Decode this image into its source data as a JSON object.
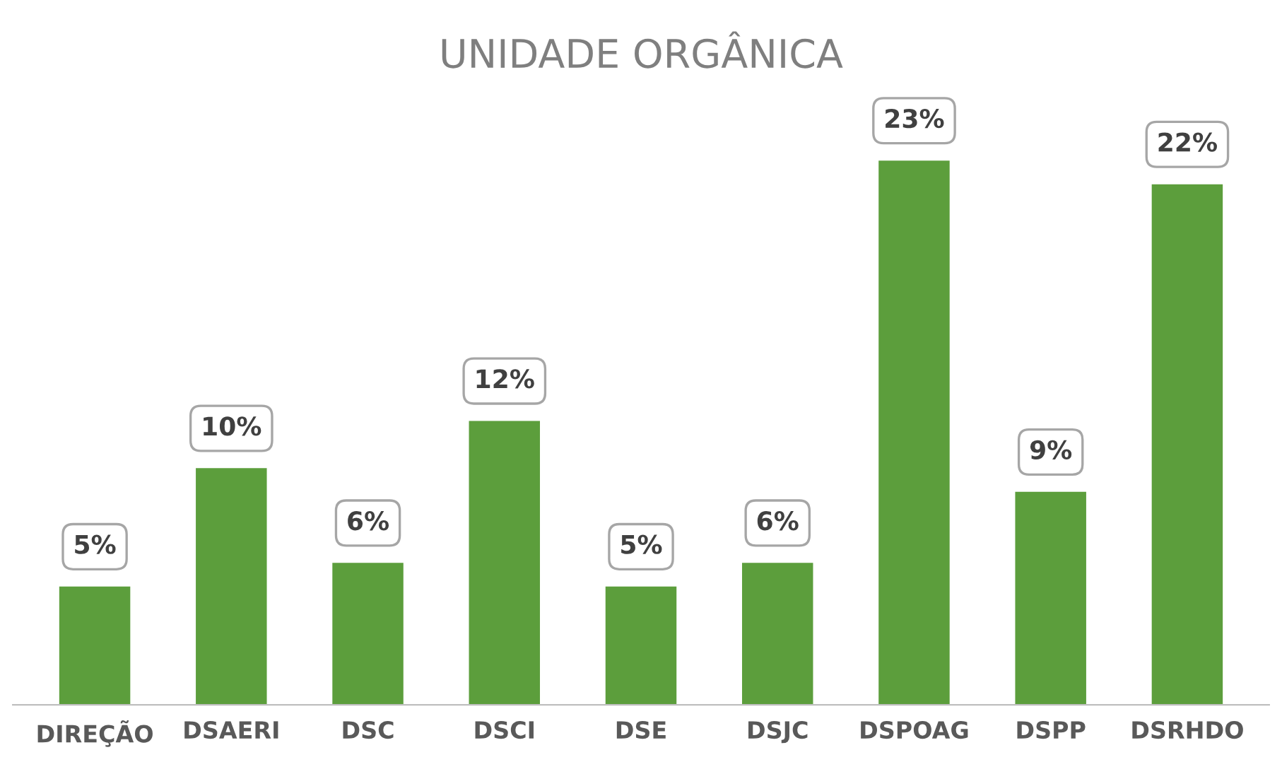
{
  "chart_data": {
    "type": "bar",
    "title": "UNIDADE ORGÂNICA",
    "categories": [
      "DIREÇÃO",
      "DSAERI",
      "DSC",
      "DSCI",
      "DSE",
      "DSJC",
      "DSPOAG",
      "DSPP",
      "DSRHDO"
    ],
    "values": [
      5,
      10,
      6,
      12,
      5,
      6,
      23,
      9,
      22
    ],
    "value_labels": [
      "5%",
      "10%",
      "6%",
      "12%",
      "5%",
      "6%",
      "23%",
      "9%",
      "22%"
    ],
    "color": "#5c9e3c",
    "grid": false,
    "legend": false
  }
}
